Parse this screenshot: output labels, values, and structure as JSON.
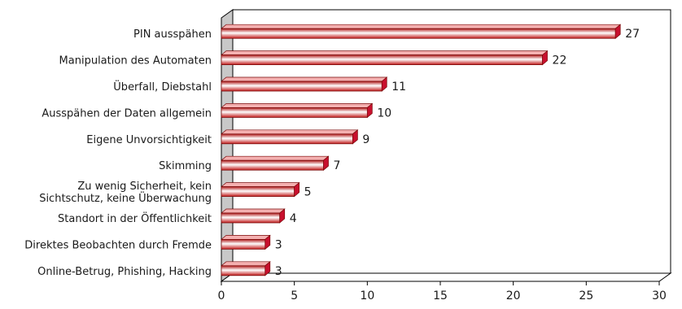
{
  "chart_data": {
    "type": "bar",
    "orientation": "horizontal",
    "style": "3d",
    "categories": [
      "PIN ausspähen",
      "Manipulation des Automaten",
      "Überfall, Diebstahl",
      "Ausspähen der Daten allgemein",
      "Eigene Unvorsichtigkeit",
      "Skimming",
      "Zu wenig Sicherheit, kein Sichtschutz, keine Überwachung",
      "Standort in der Öffentlichkeit",
      "Direktes Beobachten durch Fremde",
      "Online-Betrug, Phishing, Hacking"
    ],
    "category_lines": [
      [
        "PIN ausspähen"
      ],
      [
        "Manipulation des Automaten"
      ],
      [
        "Überfall, Diebstahl"
      ],
      [
        "Ausspähen der Daten allgemein"
      ],
      [
        "Eigene Unvorsichtigkeit"
      ],
      [
        "Skimming"
      ],
      [
        "Zu wenig Sicherheit, kein",
        "Sichtschutz, keine Überwachung"
      ],
      [
        "Standort in der Öffentlichkeit"
      ],
      [
        "Direktes Beobachten durch Fremde"
      ],
      [
        "Online-Betrug, Phishing, Hacking"
      ]
    ],
    "values": [
      27,
      22,
      11,
      10,
      9,
      7,
      5,
      4,
      3,
      3
    ],
    "xlim": [
      0,
      30
    ],
    "xticks": [
      0,
      5,
      10,
      15,
      20,
      25,
      30
    ],
    "title": "",
    "xlabel": "",
    "ylabel": "",
    "grid": false,
    "colors": {
      "bar_light": "#ffffff",
      "bar_mid": "#ef8a8a",
      "bar_dark": "#b01a1a",
      "bar_top": "#f4b0b0",
      "bar_end": "#c8102e",
      "back_wall": "#ffffff",
      "side_wall": "#c8c8c8",
      "axis": "#000000"
    }
  }
}
